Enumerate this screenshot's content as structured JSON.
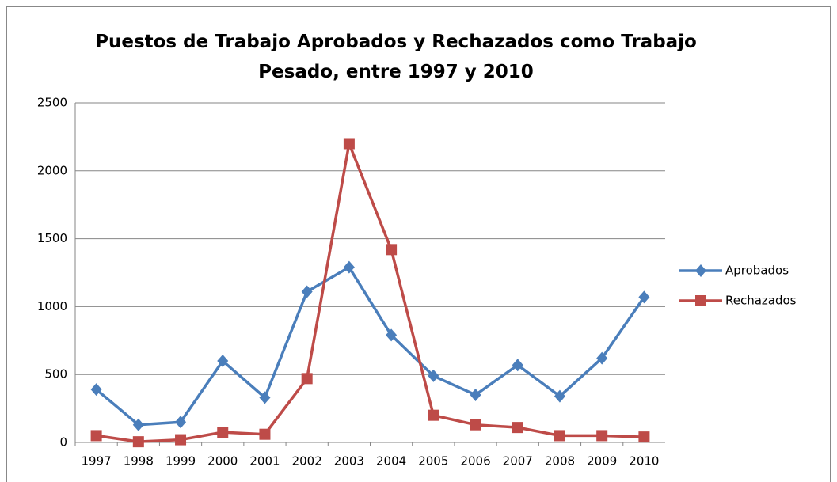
{
  "chart_data": {
    "type": "line",
    "title": "Puestos de Trabajo Aprobados y Rechazados como Trabajo Pesado, entre 1997 y 2010",
    "categories": [
      "1997",
      "1998",
      "1999",
      "2000",
      "2001",
      "2002",
      "2003",
      "2004",
      "2005",
      "2006",
      "2007",
      "2008",
      "2009",
      "2010"
    ],
    "series": [
      {
        "name": "Aprobados",
        "color": "#4a7ebb",
        "marker": "diamond",
        "values": [
          390,
          130,
          150,
          600,
          330,
          1110,
          1290,
          790,
          490,
          350,
          570,
          340,
          620,
          1070
        ]
      },
      {
        "name": "Rechazados",
        "color": "#be4b48",
        "marker": "square",
        "values": [
          50,
          5,
          20,
          75,
          60,
          470,
          2200,
          1420,
          200,
          130,
          110,
          50,
          50,
          40
        ]
      }
    ],
    "ylim": [
      0,
      2500
    ],
    "yticks": [
      0,
      500,
      1000,
      1500,
      2000,
      2500
    ],
    "grid": true,
    "legend": "right"
  }
}
